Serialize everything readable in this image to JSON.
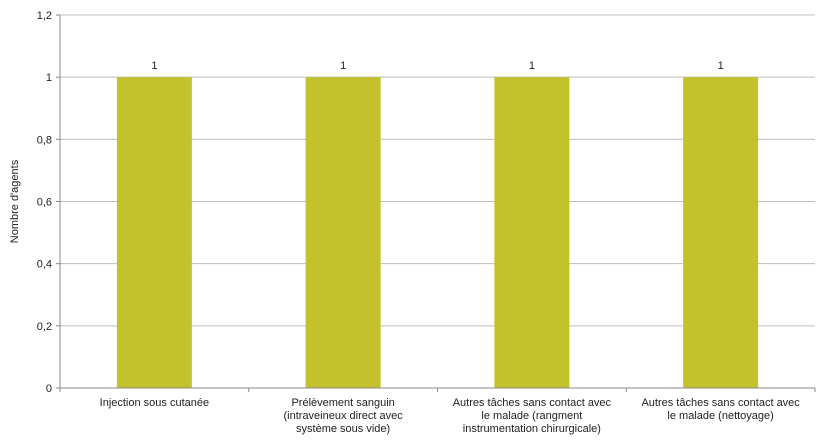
{
  "chart_data": {
    "type": "bar",
    "title": "",
    "xlabel": "",
    "ylabel": "Nombre d'agents",
    "ylim": [
      0,
      1.2
    ],
    "yticks": [
      "0",
      "0,2",
      "0,4",
      "0,6",
      "0,8",
      "1",
      "1,2"
    ],
    "categories": [
      [
        "Injection sous cutanée"
      ],
      [
        "Prélèvement sanguin",
        "(intraveineux direct avec",
        "système sous vide)"
      ],
      [
        "Autres tâches sans contact avec",
        "le malade (rangment",
        "instrumentation chirurgicale)"
      ],
      [
        "Autres tâches sans contact avec",
        "le malade (nettoyage)"
      ]
    ],
    "values": [
      1,
      1,
      1,
      1
    ],
    "data_labels": [
      "1",
      "1",
      "1",
      "1"
    ],
    "bar_color": "#c3c22d",
    "grid": true,
    "legend": "none"
  }
}
